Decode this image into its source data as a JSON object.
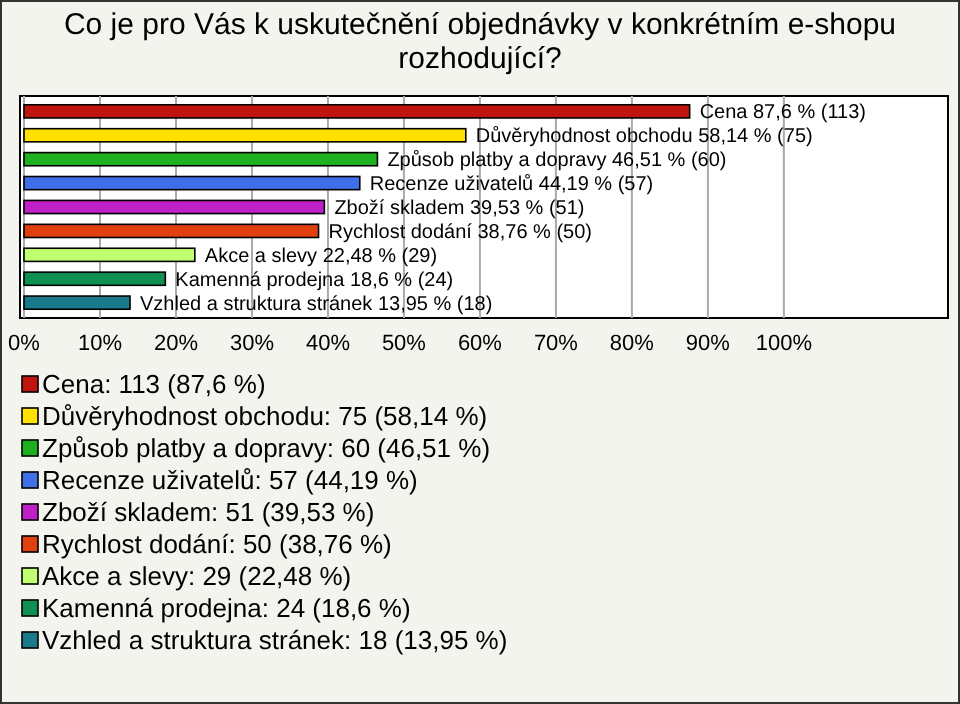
{
  "chart_data": {
    "type": "bar",
    "orientation": "horizontal",
    "title": "Co je pro Vás k uskutečnění objednávky v konkrétním e-shopu rozhodující?",
    "categories": [
      null,
      null,
      null,
      null,
      null,
      null,
      null,
      null,
      null
    ],
    "values": [
      87.6,
      58.14,
      46.51,
      44.19,
      39.53,
      38.76,
      22.48,
      18.6,
      13.95
    ],
    "colors": [
      "#c0150f",
      "#ffe000",
      "#1fb01f",
      "#3f6fe8",
      "#c020c8",
      "#e04010",
      "#c0ff70",
      "#109050",
      "#1a7a8a"
    ],
    "value_labels": [
      "Cena 87,6 % (113)",
      "Důvěryhodnost obchodu 58,14 % (75)",
      "Způsob platby a dopravy 46,51 % (60)",
      "Recenze uživatelů 44,19 % (57)",
      "Zboží skladem 39,53 % (51)",
      "Rychlost dodání 38,76 % (50)",
      "Akce a slevy 22,48 % (29)",
      "Kamenná prodejna 18,6 % (24)",
      "Vzhled a struktura stránek 13,95 % (18)"
    ],
    "annotations": [
      "Cena: 113 (87,6 %)",
      "Důvěryhodnost obchodu: 75 (58,14 %)",
      "Způsob platby a dopravy: 60 (46,51 %)",
      "Recenze uživatelů: 57 (44,19 %)",
      "Zboží skladem: 51 (39,53 %)",
      "Rychlost dodání: 50 (38,76 %)",
      "Akce a slevy: 29 (22,48 %)",
      "Kamenná prodejna: 24 (18,6 %)",
      "Vzhled a struktura stránek: 18 (13,95 %)"
    ],
    "xlim": [
      0,
      121.6
    ],
    "xticks": [
      {
        "value": 0,
        "label": "0%"
      },
      {
        "value": 10,
        "label": "10%"
      },
      {
        "value": 20,
        "label": "20%"
      },
      {
        "value": 30,
        "label": "30%"
      },
      {
        "value": 40,
        "label": "40%"
      },
      {
        "value": 50,
        "label": "50%"
      },
      {
        "value": 60,
        "label": "60%"
      },
      {
        "value": 70,
        "label": "70%"
      },
      {
        "value": 80,
        "label": "80%"
      },
      {
        "value": 90,
        "label": "90%"
      },
      {
        "value": 100,
        "label": "100%"
      }
    ],
    "grid": "x"
  }
}
